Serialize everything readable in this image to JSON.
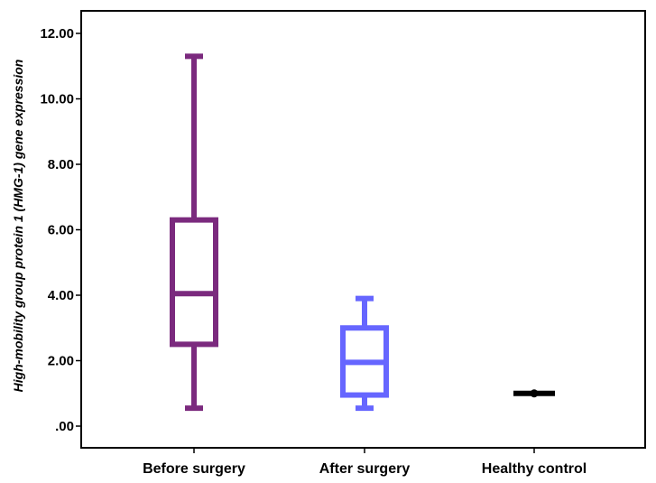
{
  "chart_data": {
    "type": "boxplot",
    "ylabel": "High-mobility group protein 1 (HMG-1) gene expression",
    "xlabel": "",
    "ylim": [
      0,
      12.4
    ],
    "yticks": [
      0,
      2,
      4,
      6,
      8,
      10,
      12
    ],
    "ytick_labels": [
      ".00",
      "2.00",
      "4.00",
      "6.00",
      "8.00",
      "10.00",
      "12.00"
    ],
    "grid": false,
    "categories": [
      "Before surgery",
      "After surgery",
      "Healthy control"
    ],
    "boxes": [
      {
        "category": "Before surgery",
        "min": 0.55,
        "q1": 2.5,
        "median": 4.05,
        "q3": 6.3,
        "max": 11.3,
        "color": "#7b2a7e"
      },
      {
        "category": "After surgery",
        "min": 0.55,
        "q1": 0.95,
        "median": 1.95,
        "q3": 3.0,
        "max": 3.9,
        "color": "#6666ff"
      },
      {
        "category": "Healthy control",
        "min": 0.97,
        "q1": 1.0,
        "median": 1.0,
        "q3": 1.02,
        "max": 1.05,
        "color": "#000000"
      }
    ]
  }
}
